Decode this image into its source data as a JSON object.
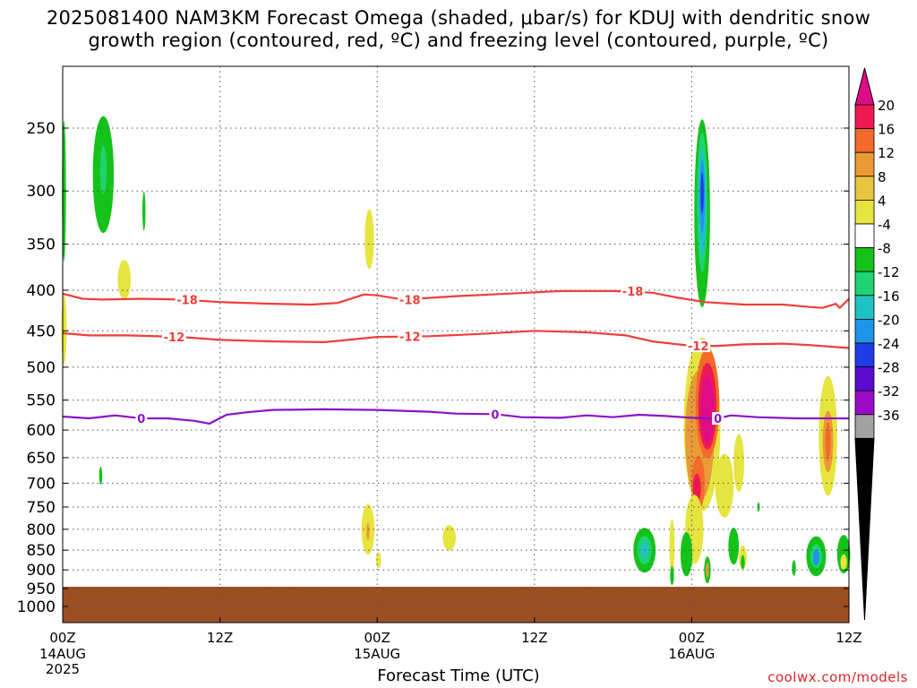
{
  "title_line1": "2025081400 NAM3KM Forecast Omega (shaded, μbar/s) for KDUJ with dendritic snow",
  "title_line2": "growth region (contoured, red, ºC) and freezing level (contoured, purple, ºC)",
  "credit": "coolwx.com/models",
  "colors": {
    "terrain": "#9c4e23",
    "dgz_contour": "#ef3e3a",
    "freezing_contour": "#8c12c8",
    "grid": "#808080"
  },
  "chart_data": {
    "type": "heatmap",
    "xlabel": "Forecast Time (UTC)",
    "ylabel": "",
    "x_range_hours": [
      0,
      60
    ],
    "y_range_hPa": [
      1025,
      200
    ],
    "x_ticks": [
      {
        "hour": 0,
        "label": "00Z",
        "sub": "14AUG",
        "sub2": "2025"
      },
      {
        "hour": 12,
        "label": "12Z",
        "sub": "",
        "sub2": ""
      },
      {
        "hour": 24,
        "label": "00Z",
        "sub": "15AUG",
        "sub2": ""
      },
      {
        "hour": 36,
        "label": "12Z",
        "sub": "",
        "sub2": ""
      },
      {
        "hour": 48,
        "label": "00Z",
        "sub": "16AUG",
        "sub2": ""
      },
      {
        "hour": 60,
        "label": "12Z",
        "sub": "",
        "sub2": ""
      }
    ],
    "y_ticks": [
      250,
      300,
      350,
      400,
      450,
      500,
      550,
      600,
      650,
      700,
      750,
      800,
      850,
      900,
      950,
      1000
    ],
    "grid": true,
    "terrain_surface_pressure": 945,
    "colorbar": {
      "labels": [
        "20",
        "16",
        "12",
        "8",
        "4",
        "-4",
        "-8",
        "-12",
        "-16",
        "-20",
        "-24",
        "-28",
        "-32",
        "-36"
      ],
      "colors": [
        "#ed1a52",
        "#f36a2a",
        "#ea9a36",
        "#e8c43f",
        "#e6e43e",
        "#ffffff",
        "#15c21a",
        "#1fd272",
        "#1dc3c3",
        "#1e95e9",
        "#1f3ce6",
        "#5a0cd0",
        "#9a0cc8",
        "#a2a2a2"
      ],
      "top_color": "#e00c87",
      "bottom_color": "#000000"
    },
    "contours": [
      {
        "label": "-18",
        "color": "#ef3e3a",
        "points": [
          [
            0,
            404
          ],
          [
            1.5,
            410
          ],
          [
            3,
            411
          ],
          [
            6,
            410
          ],
          [
            9,
            411
          ],
          [
            12,
            414
          ],
          [
            16,
            416
          ],
          [
            19,
            417
          ],
          [
            21,
            415
          ],
          [
            23,
            405
          ],
          [
            24,
            406
          ],
          [
            26,
            411
          ],
          [
            30,
            407
          ],
          [
            34,
            404
          ],
          [
            38,
            401
          ],
          [
            42,
            401
          ],
          [
            45,
            403
          ],
          [
            47,
            409
          ],
          [
            49,
            414
          ],
          [
            52,
            417
          ],
          [
            55,
            417
          ],
          [
            57,
            420
          ],
          [
            58,
            421
          ],
          [
            59,
            416
          ],
          [
            59.3,
            421
          ],
          [
            60,
            410
          ]
        ],
        "labels": [
          [
            9.5,
            411
          ],
          [
            26.5,
            411
          ],
          [
            43.5,
            401
          ]
        ]
      },
      {
        "label": "-12",
        "color": "#ef3e3a",
        "points": [
          [
            0,
            453
          ],
          [
            2,
            456
          ],
          [
            5,
            456
          ],
          [
            9,
            458
          ],
          [
            12,
            462
          ],
          [
            16,
            464
          ],
          [
            20,
            465
          ],
          [
            24,
            458
          ],
          [
            28,
            457
          ],
          [
            32,
            454
          ],
          [
            36,
            450
          ],
          [
            40,
            452
          ],
          [
            43,
            456
          ],
          [
            45,
            464
          ],
          [
            48,
            470
          ],
          [
            50,
            470
          ],
          [
            52,
            468
          ],
          [
            55,
            467
          ],
          [
            57,
            469
          ],
          [
            60,
            473
          ]
        ],
        "labels": [
          [
            8.5,
            458
          ],
          [
            26.5,
            457
          ],
          [
            48.5,
            470
          ]
        ]
      },
      {
        "label": "0",
        "color": "#8c12c8",
        "points": [
          [
            0,
            577
          ],
          [
            2,
            580
          ],
          [
            4,
            575
          ],
          [
            6,
            580
          ],
          [
            8,
            580
          ],
          [
            10,
            584
          ],
          [
            11.2,
            589
          ],
          [
            12.5,
            574
          ],
          [
            14,
            570
          ],
          [
            16,
            566
          ],
          [
            20,
            565
          ],
          [
            24,
            566
          ],
          [
            28,
            569
          ],
          [
            30,
            572
          ],
          [
            33,
            573
          ],
          [
            35,
            578
          ],
          [
            38,
            579
          ],
          [
            40,
            575
          ],
          [
            42,
            578
          ],
          [
            44,
            574
          ],
          [
            46,
            576
          ],
          [
            48,
            579
          ],
          [
            49,
            580
          ],
          [
            50,
            580
          ],
          [
            51,
            575
          ],
          [
            53,
            578
          ],
          [
            56,
            580
          ],
          [
            58,
            580
          ],
          [
            60,
            580
          ]
        ],
        "labels": [
          [
            6,
            580
          ],
          [
            33,
            573
          ],
          [
            50,
            580
          ]
        ]
      }
    ],
    "cells": [
      {
        "x": 3.1,
        "p": 286,
        "rx": 0.8,
        "rp": 48,
        "value": -5.5
      },
      {
        "x": 3.1,
        "p": 282,
        "rx": 0.25,
        "rp": 20,
        "value": -9
      },
      {
        "x": 6.2,
        "p": 318,
        "rx": 0.12,
        "rp": 18,
        "value": -5.5
      },
      {
        "x": 0.1,
        "p": 300,
        "rx": 0.15,
        "rp": 60,
        "value": -5.5
      },
      {
        "x": 4.7,
        "p": 388,
        "rx": 0.5,
        "rp": 22,
        "value": 5
      },
      {
        "x": 0.1,
        "p": 448,
        "rx": 0.2,
        "rp": 45,
        "value": 5
      },
      {
        "x": 2.9,
        "p": 685,
        "rx": 0.12,
        "rp": 18,
        "value": -5.5
      },
      {
        "x": 23.4,
        "p": 345,
        "rx": 0.35,
        "rp": 30,
        "value": 5
      },
      {
        "x": 23.3,
        "p": 800,
        "rx": 0.5,
        "rp": 58,
        "value": 5
      },
      {
        "x": 23.3,
        "p": 805,
        "rx": 0.12,
        "rp": 20,
        "value": 9
      },
      {
        "x": 24.1,
        "p": 875,
        "rx": 0.2,
        "rp": 20,
        "value": 5
      },
      {
        "x": 29.5,
        "p": 820,
        "rx": 0.5,
        "rp": 30,
        "value": 5
      },
      {
        "x": 48.8,
        "p": 320,
        "rx": 0.6,
        "rp": 85,
        "value": -6
      },
      {
        "x": 48.8,
        "p": 310,
        "rx": 0.4,
        "rp": 62,
        "value": -11
      },
      {
        "x": 48.8,
        "p": 310,
        "rx": 0.3,
        "rp": 48,
        "value": -15
      },
      {
        "x": 48.8,
        "p": 305,
        "rx": 0.2,
        "rp": 32,
        "value": -19
      },
      {
        "x": 48.8,
        "p": 302,
        "rx": 0.12,
        "rp": 18,
        "value": -22
      },
      {
        "x": 48.8,
        "p": 590,
        "rx": 1.4,
        "rp": 145,
        "value": 5
      },
      {
        "x": 48.6,
        "p": 610,
        "rx": 1.1,
        "rp": 115,
        "value": 9
      },
      {
        "x": 48.5,
        "p": 700,
        "rx": 0.5,
        "rp": 55,
        "value": 13
      },
      {
        "x": 48.4,
        "p": 710,
        "rx": 0.3,
        "rp": 30,
        "value": 18
      },
      {
        "x": 49.2,
        "p": 555,
        "rx": 0.9,
        "rp": 88,
        "value": 13
      },
      {
        "x": 49.2,
        "p": 560,
        "rx": 0.7,
        "rp": 70,
        "value": 17
      },
      {
        "x": 49.2,
        "p": 565,
        "rx": 0.5,
        "rp": 55,
        "value": 22
      },
      {
        "x": 48.2,
        "p": 800,
        "rx": 0.7,
        "rp": 80,
        "value": 5
      },
      {
        "x": 46.5,
        "p": 840,
        "rx": 0.2,
        "rp": 65,
        "value": 5
      },
      {
        "x": 44.4,
        "p": 850,
        "rx": 0.85,
        "rp": 55,
        "value": -5.5
      },
      {
        "x": 44.4,
        "p": 850,
        "rx": 0.55,
        "rp": 35,
        "value": -9
      },
      {
        "x": 44.4,
        "p": 850,
        "rx": 0.3,
        "rp": 20,
        "value": -13
      },
      {
        "x": 46.5,
        "p": 915,
        "rx": 0.15,
        "rp": 25,
        "value": -5.5
      },
      {
        "x": 47.6,
        "p": 860,
        "rx": 0.45,
        "rp": 55,
        "value": -5.5
      },
      {
        "x": 49.2,
        "p": 900,
        "rx": 0.25,
        "rp": 35,
        "value": -5.5
      },
      {
        "x": 49.2,
        "p": 900,
        "rx": 0.12,
        "rp": 20,
        "value": 9
      },
      {
        "x": 50.5,
        "p": 705,
        "rx": 0.7,
        "rp": 65,
        "value": 5
      },
      {
        "x": 51.6,
        "p": 660,
        "rx": 0.4,
        "rp": 55,
        "value": 5
      },
      {
        "x": 51.2,
        "p": 840,
        "rx": 0.4,
        "rp": 45,
        "value": -5.5
      },
      {
        "x": 51.9,
        "p": 868,
        "rx": 0.3,
        "rp": 30,
        "value": 5
      },
      {
        "x": 51.9,
        "p": 880,
        "rx": 0.15,
        "rp": 18,
        "value": -5.5
      },
      {
        "x": 53.1,
        "p": 750,
        "rx": 0.1,
        "rp": 10,
        "value": -5.5
      },
      {
        "x": 55.8,
        "p": 895,
        "rx": 0.15,
        "rp": 20,
        "value": -5.5
      },
      {
        "x": 58.4,
        "p": 610,
        "rx": 0.7,
        "rp": 105,
        "value": 5
      },
      {
        "x": 58.4,
        "p": 620,
        "rx": 0.4,
        "rp": 55,
        "value": 9
      },
      {
        "x": 58.4,
        "p": 620,
        "rx": 0.2,
        "rp": 35,
        "value": 13
      },
      {
        "x": 57.5,
        "p": 865,
        "rx": 0.75,
        "rp": 50,
        "value": -5.5
      },
      {
        "x": 57.5,
        "p": 865,
        "rx": 0.45,
        "rp": 30,
        "value": -11
      },
      {
        "x": 57.5,
        "p": 868,
        "rx": 0.25,
        "rp": 20,
        "value": -17
      },
      {
        "x": 59.6,
        "p": 860,
        "rx": 0.5,
        "rp": 48,
        "value": -5.5
      },
      {
        "x": 59.6,
        "p": 880,
        "rx": 0.25,
        "rp": 20,
        "value": 5
      }
    ]
  }
}
